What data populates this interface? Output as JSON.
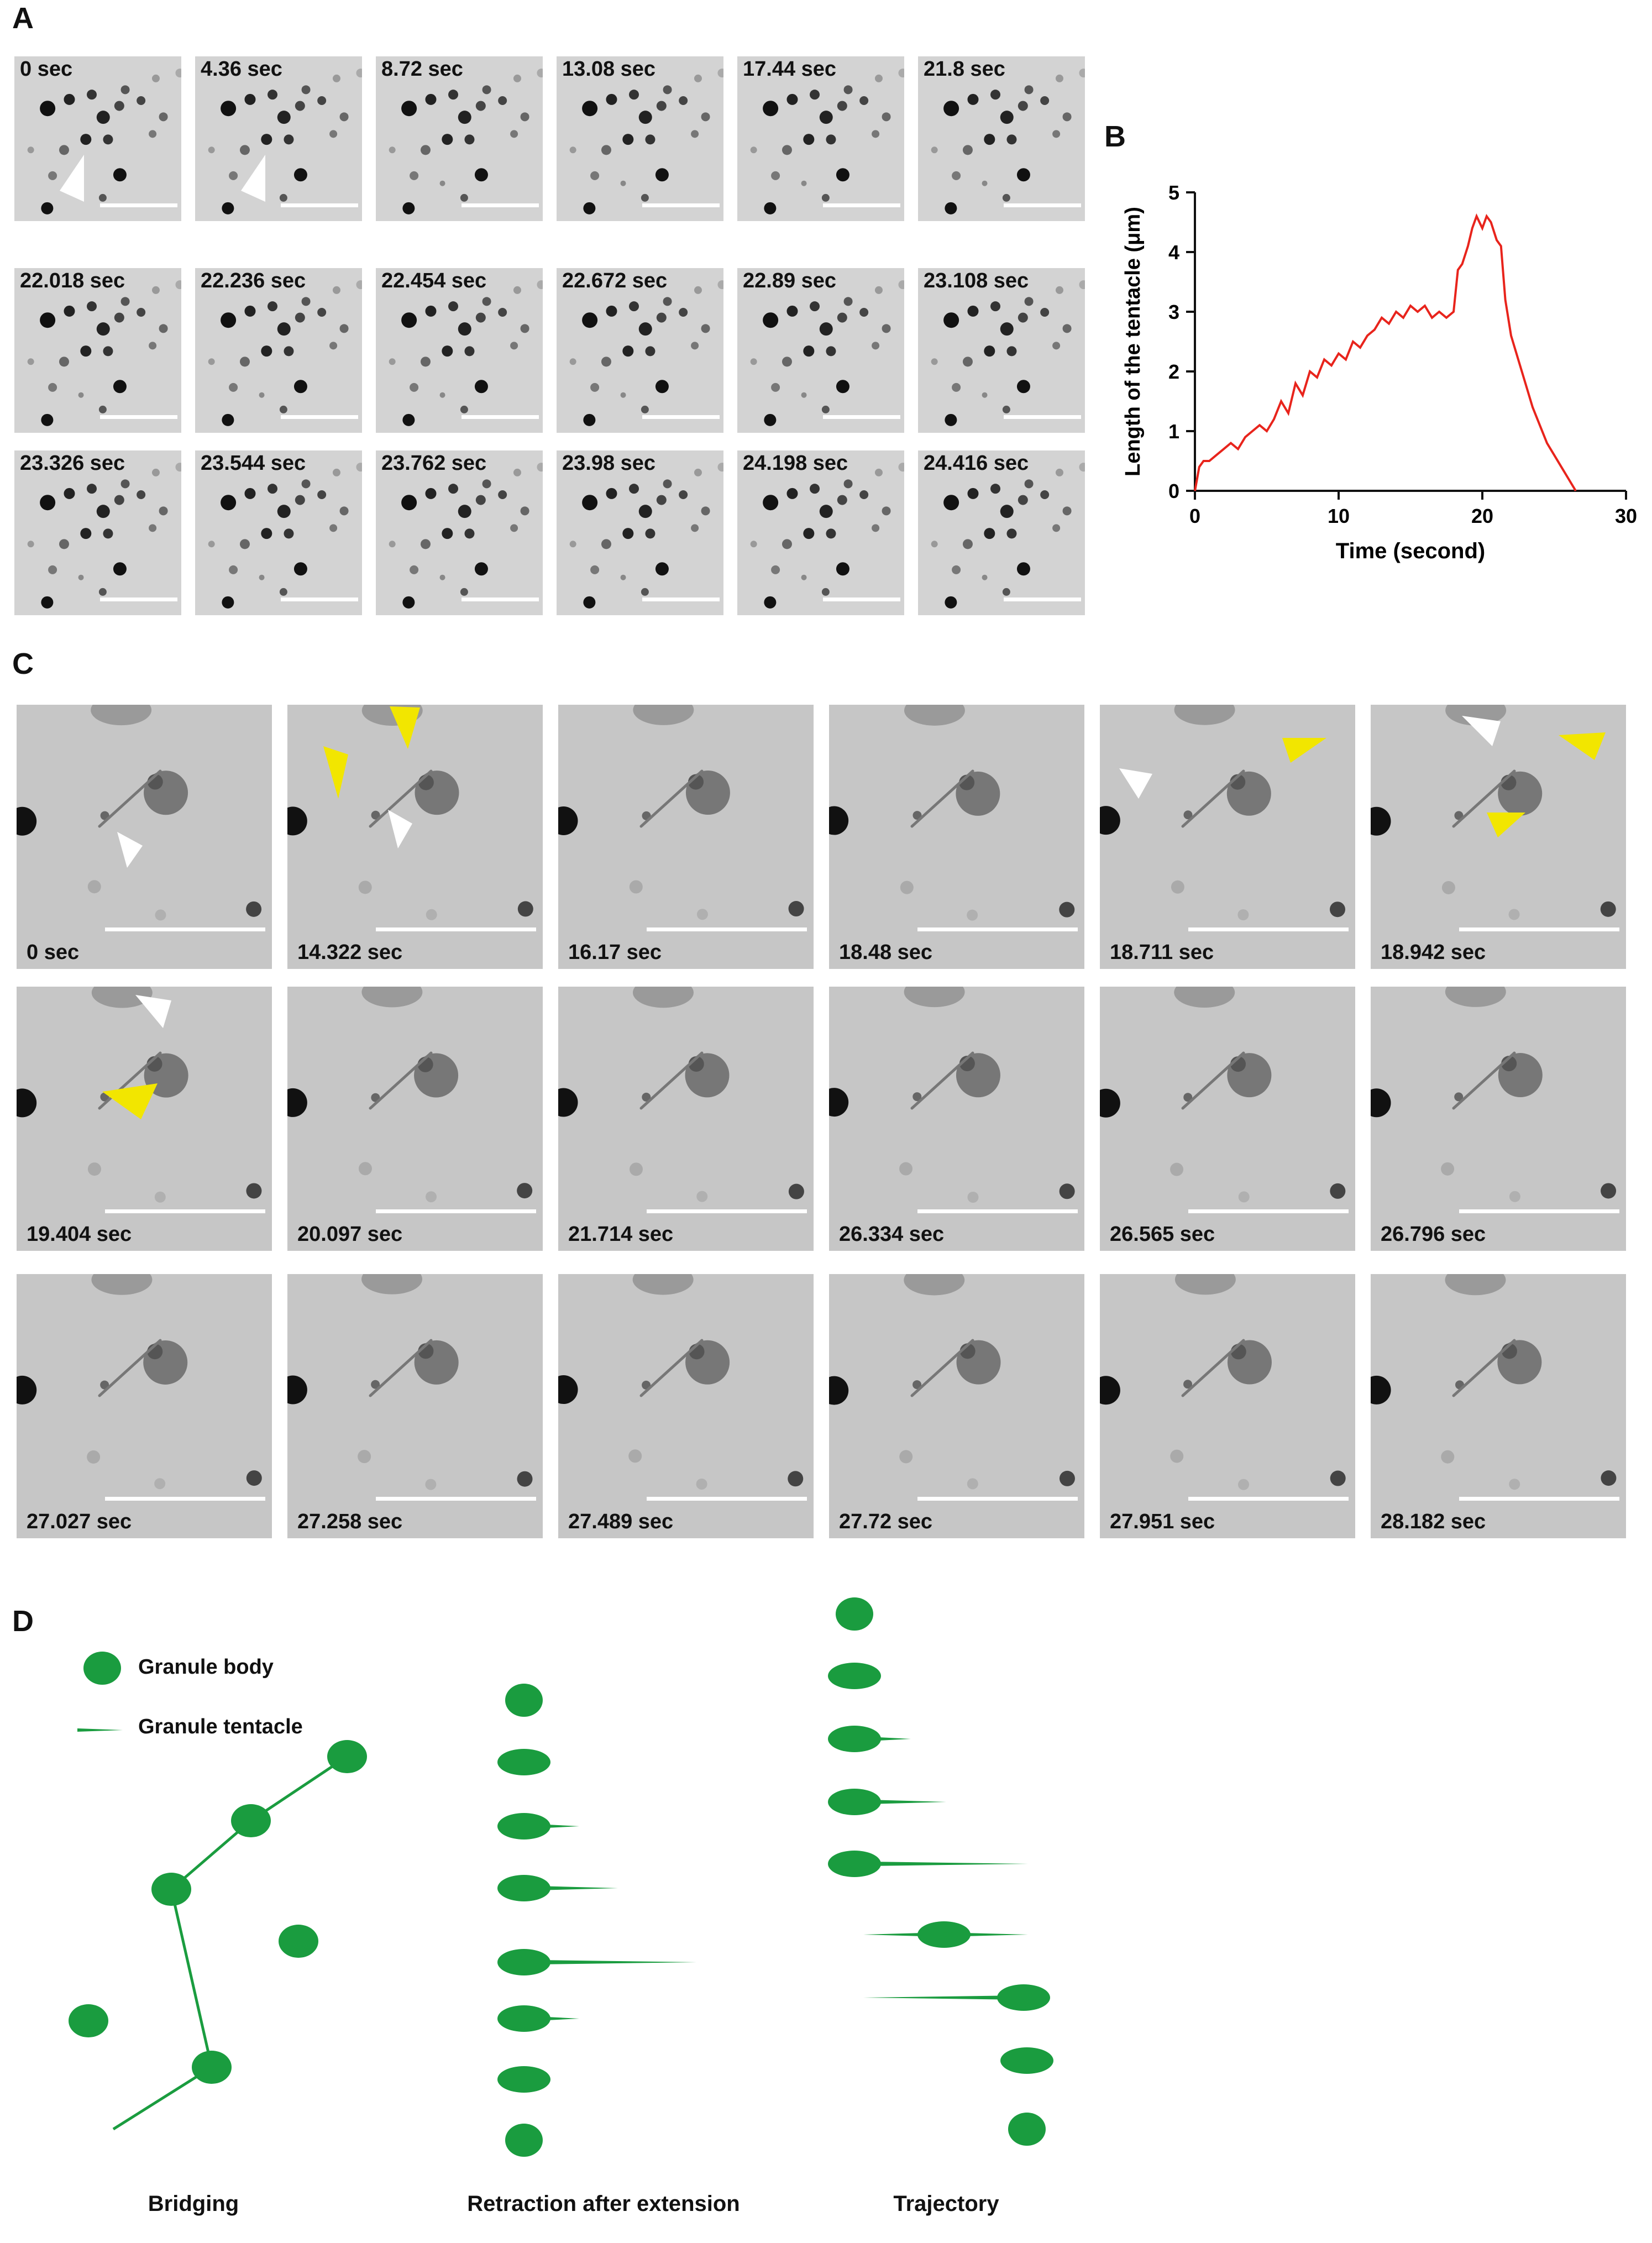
{
  "panels": {
    "A": {
      "letter": "A",
      "frames": [
        "0 sec",
        "4.36 sec",
        "8.72 sec",
        "13.08 sec",
        "17.44 sec",
        "21.8 sec",
        "22.018 sec",
        "22.236 sec",
        "22.454 sec",
        "22.672 sec",
        "22.89 sec",
        "23.108 sec",
        "23.326 sec",
        "23.544 sec",
        "23.762 sec",
        "23.98 sec",
        "24.198 sec",
        "24.416 sec"
      ]
    },
    "B": {
      "letter": "B"
    },
    "C": {
      "letter": "C",
      "frames": [
        "0 sec",
        "14.322 sec",
        "16.17 sec",
        "18.48 sec",
        "18.711 sec",
        "18.942 sec",
        "19.404 sec",
        "20.097 sec",
        "21.714 sec",
        "26.334 sec",
        "26.565 sec",
        "26.796 sec",
        "27.027 sec",
        "27.258 sec",
        "27.489 sec",
        "27.72 sec",
        "27.951 sec",
        "28.182 sec"
      ]
    },
    "D": {
      "letter": "D",
      "legend": {
        "body": "Granule body",
        "tentacle": "Granule tentacle"
      },
      "labels": {
        "bridging": "Bridging",
        "retraction": "Retraction after extension",
        "trajectory": "Trajectory"
      }
    }
  },
  "colors": {
    "line": "#e8241c",
    "granule": "#1a9c3f",
    "arrow_white": "#ffffff",
    "arrow_yellow": "#f2e600"
  },
  "chart_data": {
    "type": "line",
    "title": "",
    "xlabel": "Time (second)",
    "ylabel": "Length of the tentacle (μm)",
    "xlim": [
      0,
      30
    ],
    "ylim": [
      0,
      5
    ],
    "xticks": [
      0,
      10,
      20,
      30
    ],
    "yticks": [
      0,
      1,
      2,
      3,
      4,
      5
    ],
    "grid": false,
    "series": [
      {
        "x": [
          0,
          0.3,
          0.6,
          1,
          1.5,
          2,
          2.5,
          3,
          3.5,
          4,
          4.5,
          5,
          5.5,
          6,
          6.5,
          7,
          7.5,
          8,
          8.5,
          9,
          9.5,
          10,
          10.5,
          11,
          11.5,
          12,
          12.5,
          13,
          13.5,
          14,
          14.5,
          15,
          15.5,
          16,
          16.5,
          17,
          17.5,
          18,
          18.3,
          18.6,
          19,
          19.3,
          19.6,
          20,
          20.3,
          20.6,
          21,
          21.3,
          21.6,
          22,
          22.5,
          23,
          23.5,
          24,
          24.5,
          25,
          25.5,
          26,
          26.5
        ],
        "y": [
          0,
          0.4,
          0.5,
          0.5,
          0.6,
          0.7,
          0.8,
          0.7,
          0.9,
          1.0,
          1.1,
          1.0,
          1.2,
          1.5,
          1.3,
          1.8,
          1.6,
          2.0,
          1.9,
          2.2,
          2.1,
          2.3,
          2.2,
          2.5,
          2.4,
          2.6,
          2.7,
          2.9,
          2.8,
          3.0,
          2.9,
          3.1,
          3.0,
          3.1,
          2.9,
          3.0,
          2.9,
          3.0,
          3.7,
          3.8,
          4.1,
          4.4,
          4.6,
          4.4,
          4.6,
          4.5,
          4.2,
          4.1,
          3.2,
          2.6,
          2.2,
          1.8,
          1.4,
          1.1,
          0.8,
          0.6,
          0.4,
          0.2,
          0
        ]
      }
    ]
  }
}
